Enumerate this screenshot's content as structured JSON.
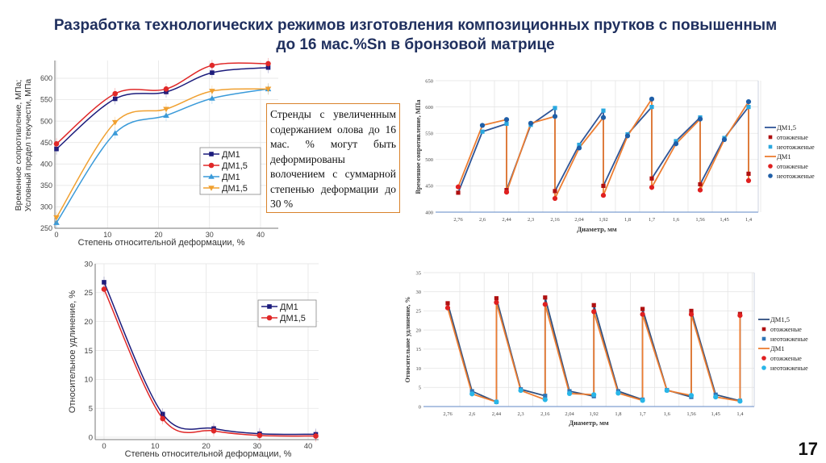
{
  "slide": {
    "title": "Разработка технологических режимов изготовления композиционных прутков с повышенным до 16 мас.%Sn в бронзовой матрице",
    "note": "Стренды с увеличенным содержанием олова до 16 мас. % могут быть деформированы волочением с суммарной степенью деформации до 30 %",
    "page_number": "17"
  },
  "chart_data": [
    {
      "type": "line",
      "xlabel": "Степень относительной деформации, %",
      "ylabel": [
        "Временное сопротивление, МПа;",
        "Условный предел текучести, МПа"
      ],
      "ylim": [
        250,
        650
      ],
      "xlim": [
        0,
        43
      ],
      "xticks": [
        0,
        10,
        20,
        30,
        40
      ],
      "yticks": [
        250,
        300,
        350,
        400,
        450,
        500,
        550,
        600
      ],
      "grid": true,
      "legend": "center-right",
      "smooth": true,
      "x": [
        0,
        11.5,
        21.5,
        30.5,
        41.5
      ],
      "series": [
        {
          "name": "ДМ1",
          "marker": "square",
          "color": "#1c1c7c",
          "values": [
            435,
            552,
            568,
            613,
            625
          ]
        },
        {
          "name": "ДМ1,5",
          "marker": "circle",
          "color": "#e02828",
          "values": [
            447,
            564,
            575,
            630,
            634
          ]
        },
        {
          "name": "ДМ1",
          "marker": "triangle-up",
          "color": "#3a9ad9",
          "values": [
            263,
            472,
            513,
            553,
            575
          ]
        },
        {
          "name": "ДМ1,5",
          "marker": "triangle-down",
          "color": "#f0a030",
          "values": [
            275,
            497,
            528,
            570,
            575
          ]
        }
      ]
    },
    {
      "type": "line",
      "xlabel": "Диаметр, мм",
      "ylabel": "Временное сопротивление, МПа",
      "ylim": [
        400,
        650
      ],
      "yticks": [
        400,
        450,
        500,
        550,
        600,
        650
      ],
      "grid": true,
      "legend": "right",
      "categories": [
        "2,76",
        "2,6",
        "2,44",
        "2,3",
        "2,16",
        "2,04",
        "1,92",
        "1,8",
        "1,7",
        "1,6",
        "1,56",
        "1,45",
        "1,4"
      ],
      "series": [
        {
          "name": "ДМ1,5",
          "color": "#2f5597",
          "annealed": {
            "label": "отожженые",
            "marker": "square",
            "color": "#b01010",
            "values": [
              437,
              null,
              442,
              null,
              440,
              null,
              450,
              null,
              464,
              null,
              453,
              null,
              473
            ]
          },
          "unannealed": {
            "label": "неотожженые",
            "marker": "square",
            "color": "#29a8e0",
            "values": [
              null,
              553,
              568,
              566,
              598,
              528,
              593,
              548,
              600,
              535,
              580,
              541,
              600
            ]
          }
        },
        {
          "name": "ДМ1",
          "color": "#ed7d31",
          "annealed": {
            "label": "отожженые",
            "marker": "circle",
            "color": "#e02020",
            "values": [
              448,
              null,
              438,
              null,
              426,
              null,
              432,
              null,
              447,
              null,
              442,
              null,
              460
            ]
          },
          "unannealed": {
            "label": "неотожженые",
            "marker": "circle",
            "color": "#1f5fa8",
            "values": [
              null,
              565,
              576,
              569,
              582,
              522,
              580,
              545,
              615,
              530,
              577,
              538,
              610
            ]
          }
        }
      ]
    },
    {
      "type": "line",
      "xlabel": "Диаметр, мм",
      "ylabel": "Относительное удлинение, %",
      "ylim": [
        0,
        35
      ],
      "yticks": [
        0,
        5,
        10,
        15,
        20,
        25,
        30,
        35
      ],
      "grid": true,
      "legend": "right",
      "categories": [
        "2,76",
        "2,6",
        "2,44",
        "2,3",
        "2,16",
        "2,04",
        "1,92",
        "1,8",
        "1,7",
        "1,6",
        "1,56",
        "1,45",
        "1,4"
      ],
      "series": [
        {
          "name": "ДМ1,5",
          "color": "#2f4f7f",
          "annealed": {
            "label": "отожженые",
            "marker": "square",
            "color": "#b01010",
            "values": [
              27,
              null,
              28.3,
              null,
              28.5,
              null,
              26.5,
              null,
              25.5,
              null,
              25,
              null,
              24.2
            ]
          },
          "unannealed": {
            "label": "неотожженые",
            "marker": "square",
            "color": "#2e75b6",
            "values": [
              null,
              4,
              1.2,
              4.5,
              2.8,
              4,
              2.7,
              4,
              1.8,
              4.3,
              2.5,
              3.1,
              1.5
            ]
          }
        },
        {
          "name": "ДМ1",
          "color": "#ed7d31",
          "annealed": {
            "label": "отожженые",
            "marker": "circle",
            "color": "#e02020",
            "values": [
              25.8,
              null,
              27.2,
              null,
              26.7,
              null,
              24.8,
              null,
              24.1,
              null,
              24.1,
              null,
              23.8
            ]
          },
          "unannealed": {
            "label": "неотожженые",
            "marker": "circle",
            "color": "#29b6e8",
            "values": [
              null,
              3.3,
              1.2,
              4.2,
              1.8,
              3.4,
              3.1,
              3.5,
              1.6,
              4.2,
              2.9,
              2.5,
              1.4
            ]
          }
        }
      ]
    },
    {
      "type": "line",
      "xlabel": "Степень относительной деформации, %",
      "ylabel": "Относительное удлинение, %",
      "ylim": [
        0,
        30
      ],
      "xlim": [
        0,
        43
      ],
      "xticks": [
        0,
        10,
        20,
        30,
        40
      ],
      "yticks": [
        0,
        5,
        10,
        15,
        20,
        25,
        30
      ],
      "grid": true,
      "legend": "top-right",
      "smooth": true,
      "x": [
        0,
        11.5,
        21.5,
        30.5,
        41.5
      ],
      "series": [
        {
          "name": "ДМ1",
          "marker": "square",
          "color": "#1c1c7c",
          "values": [
            26.8,
            4,
            1.5,
            0.6,
            0.5
          ]
        },
        {
          "name": "ДМ1,5",
          "marker": "circle",
          "color": "#e02828",
          "values": [
            25.6,
            3.2,
            1.1,
            0.3,
            0.2
          ]
        }
      ]
    }
  ]
}
